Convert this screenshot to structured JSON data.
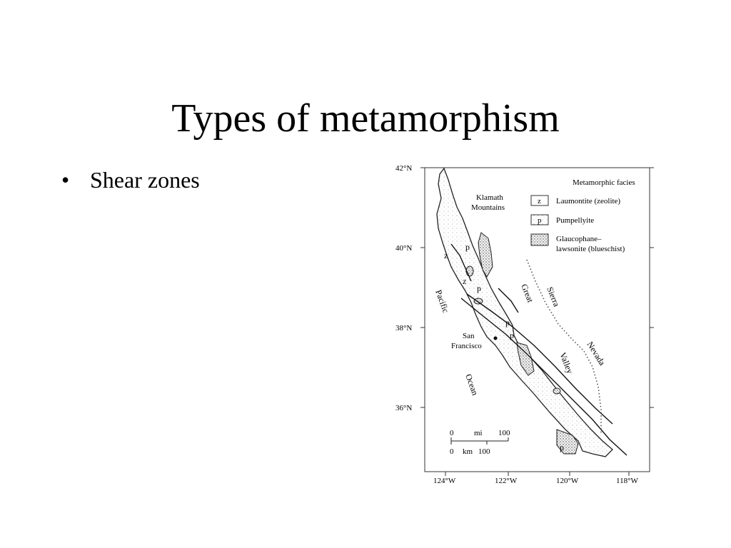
{
  "slide": {
    "title": "Types of metamorphism",
    "bullets": [
      "Shear zones"
    ]
  },
  "map": {
    "lat_labels": [
      "42°N",
      "40°N",
      "38°N",
      "36°N"
    ],
    "lon_labels": [
      "124°W",
      "122°W",
      "120°W",
      "118°W"
    ],
    "legend": {
      "title": "Metamorphic facies",
      "items": [
        {
          "symbol": "z",
          "label": "Laumontite (zeolite)"
        },
        {
          "symbol": "p",
          "label": "Pumpellyite"
        },
        {
          "symbol": "",
          "label_line1": "Glaucophane–",
          "label_line2": "lawsonite (blueschist)"
        }
      ]
    },
    "place_labels": {
      "klamath_1": "Klamath",
      "klamath_2": "Mountains",
      "pacific": "Pacific",
      "ocean": "Ocean",
      "san_francisco_1": "San",
      "san_francisco_2": "Francisco",
      "great": "Great",
      "valley": "Valley",
      "sierra": "Sierra",
      "nevada": "Nevada"
    },
    "facies_marks": [
      "p",
      "z",
      "z",
      "p",
      "p",
      "p",
      "p"
    ],
    "scale_bar": {
      "mi_zero": "0",
      "mi_unit": "mi",
      "mi_max": "100",
      "km_zero": "0",
      "km_unit": "km",
      "km_max": "100"
    }
  }
}
